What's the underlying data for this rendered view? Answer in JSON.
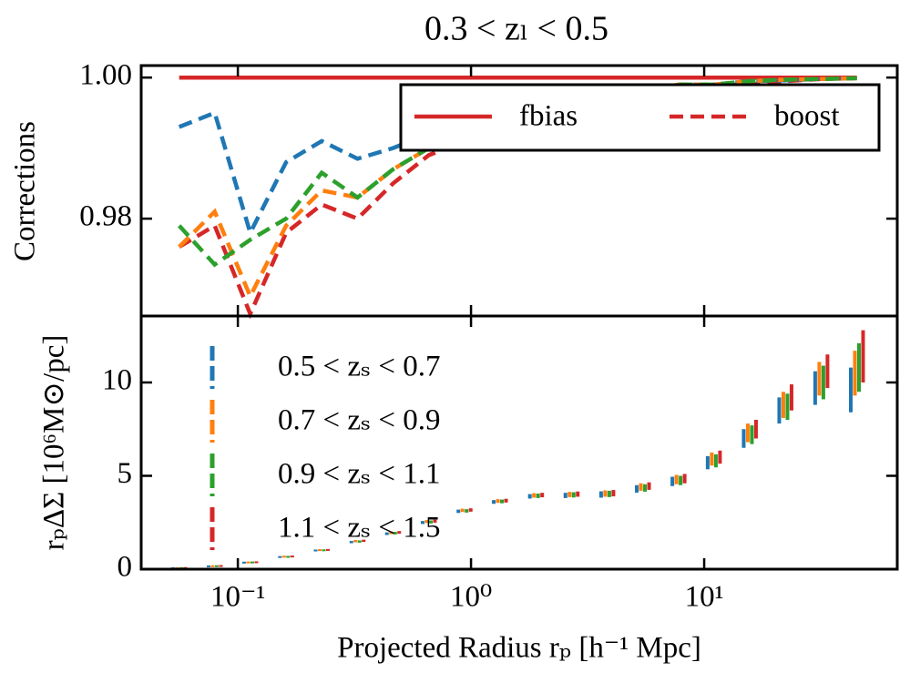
{
  "chart_data": [
    {
      "type": "line",
      "title": "0.3 < zₗ < 0.5",
      "ylabel": "Corrections",
      "xscale": "log",
      "legend": "upper right",
      "x": [
        0.056,
        0.0796,
        0.113,
        0.161,
        0.229,
        0.326,
        0.463,
        0.659,
        0.938,
        1.33,
        1.9,
        2.7,
        3.84,
        5.46,
        7.76,
        11.0,
        15.7,
        22.3,
        31.8,
        45.2
      ],
      "xlim": [
        0.0385,
        67.3
      ],
      "ylim": [
        0.9662,
        1.0017
      ],
      "yticks": [
        0.98,
        {
          "value": 1.0,
          "label": "1.00"
        }
      ],
      "series": [
        {
          "name": "fbias",
          "color": "#d62728",
          "style": "solid",
          "values": [
            1,
            1,
            1,
            1,
            1,
            1,
            1,
            1,
            1,
            1,
            1,
            1,
            1,
            1,
            1,
            1,
            1,
            1,
            1,
            1
          ]
        },
        {
          "name": "boost",
          "color": "#d62728",
          "style": "dashed",
          "values": [
            0.976,
            0.979,
            0.9665,
            0.978,
            0.982,
            0.98,
            0.985,
            0.989,
            0.991,
            0.993,
            0.995,
            0.996,
            0.997,
            0.998,
            0.998,
            0.999,
            0.999,
            0.9995,
            0.9998,
            0.9999
          ]
        },
        {
          "color": "#1f77b4",
          "style": "dashed",
          "values": [
            0.993,
            0.995,
            0.978,
            0.988,
            0.991,
            0.9885,
            0.99,
            0.992,
            0.993,
            0.995,
            0.996,
            0.997,
            0.998,
            0.998,
            0.999,
            0.999,
            0.9995,
            0.9996,
            0.9998,
            0.9999
          ]
        },
        {
          "color": "#ff7f0e",
          "style": "dashed",
          "values": [
            0.976,
            0.981,
            0.969,
            0.979,
            0.984,
            0.983,
            0.987,
            0.99,
            0.992,
            0.994,
            0.996,
            0.997,
            0.998,
            0.998,
            0.999,
            0.999,
            0.9995,
            0.9997,
            0.9998,
            0.9999
          ]
        },
        {
          "color": "#2ca02c",
          "style": "dashed",
          "values": [
            0.979,
            0.9735,
            0.977,
            0.98,
            0.9865,
            0.983,
            0.987,
            0.99,
            0.992,
            0.994,
            0.996,
            0.997,
            0.998,
            0.998,
            0.999,
            0.999,
            0.9995,
            0.9997,
            0.9998,
            0.9999
          ]
        }
      ]
    },
    {
      "type": "errorbar",
      "ylabel": "rₚΔΣ [10⁶M⊙/pc]",
      "xlabel": "Projected Radius rₚ [h⁻¹ Mpc]",
      "xscale": "log",
      "legend": "upper left",
      "x": [
        0.056,
        0.0796,
        0.113,
        0.161,
        0.229,
        0.326,
        0.463,
        0.659,
        0.938,
        1.33,
        1.9,
        2.7,
        3.84,
        5.46,
        7.76,
        11.0,
        15.7,
        22.3,
        31.8,
        45.2
      ],
      "xlim": [
        0.0385,
        67.3
      ],
      "ylim": [
        0,
        13.56
      ],
      "xticks": [
        {
          "value": 0.1,
          "label": "10⁻¹"
        },
        {
          "value": 1,
          "label": "10⁰"
        },
        {
          "value": 10,
          "label": "10¹"
        }
      ],
      "yticks": [
        0,
        5,
        10
      ],
      "series": [
        {
          "name": "0.5 < zₛ < 0.7",
          "color": "#1f77b4",
          "values": [
            0.05,
            0.15,
            0.35,
            0.65,
            1.0,
            1.45,
            1.9,
            2.5,
            3.1,
            3.6,
            3.9,
            3.95,
            4.0,
            4.3,
            4.7,
            5.7,
            7.0,
            8.5,
            9.7,
            9.6
          ],
          "errors": [
            0.05,
            0.05,
            0.05,
            0.05,
            0.05,
            0.06,
            0.07,
            0.08,
            0.09,
            0.1,
            0.12,
            0.14,
            0.17,
            0.2,
            0.25,
            0.35,
            0.5,
            0.7,
            0.9,
            1.2
          ]
        },
        {
          "name": "0.7 < zₛ < 0.9",
          "color": "#ff7f0e",
          "values": [
            0.05,
            0.16,
            0.36,
            0.67,
            1.02,
            1.5,
            1.95,
            2.55,
            3.15,
            3.65,
            3.95,
            4.0,
            4.05,
            4.4,
            4.8,
            5.9,
            7.3,
            8.8,
            10.2,
            10.5
          ],
          "errors": [
            0.05,
            0.05,
            0.05,
            0.05,
            0.05,
            0.06,
            0.07,
            0.08,
            0.09,
            0.1,
            0.12,
            0.14,
            0.17,
            0.2,
            0.25,
            0.35,
            0.5,
            0.7,
            0.9,
            1.2
          ]
        },
        {
          "name": "0.9 < zₛ < 1.1",
          "color": "#2ca02c",
          "values": [
            0.05,
            0.16,
            0.36,
            0.66,
            1.01,
            1.48,
            1.93,
            2.53,
            3.12,
            3.63,
            3.93,
            3.98,
            4.03,
            4.35,
            4.75,
            5.8,
            7.2,
            8.7,
            10.0,
            10.8
          ],
          "errors": [
            0.05,
            0.05,
            0.05,
            0.05,
            0.05,
            0.06,
            0.07,
            0.08,
            0.09,
            0.1,
            0.12,
            0.14,
            0.17,
            0.2,
            0.25,
            0.35,
            0.5,
            0.7,
            0.9,
            1.3
          ]
        },
        {
          "name": "1.1 < zₛ < 1.5",
          "color": "#d62728",
          "values": [
            0.06,
            0.17,
            0.37,
            0.68,
            1.03,
            1.52,
            1.97,
            2.57,
            3.17,
            3.67,
            3.97,
            4.02,
            4.07,
            4.45,
            4.85,
            6.0,
            7.5,
            9.2,
            10.6,
            11.4
          ],
          "errors": [
            0.05,
            0.05,
            0.05,
            0.05,
            0.05,
            0.06,
            0.07,
            0.08,
            0.09,
            0.1,
            0.12,
            0.14,
            0.17,
            0.2,
            0.25,
            0.35,
            0.5,
            0.7,
            0.9,
            1.4
          ]
        }
      ]
    }
  ]
}
